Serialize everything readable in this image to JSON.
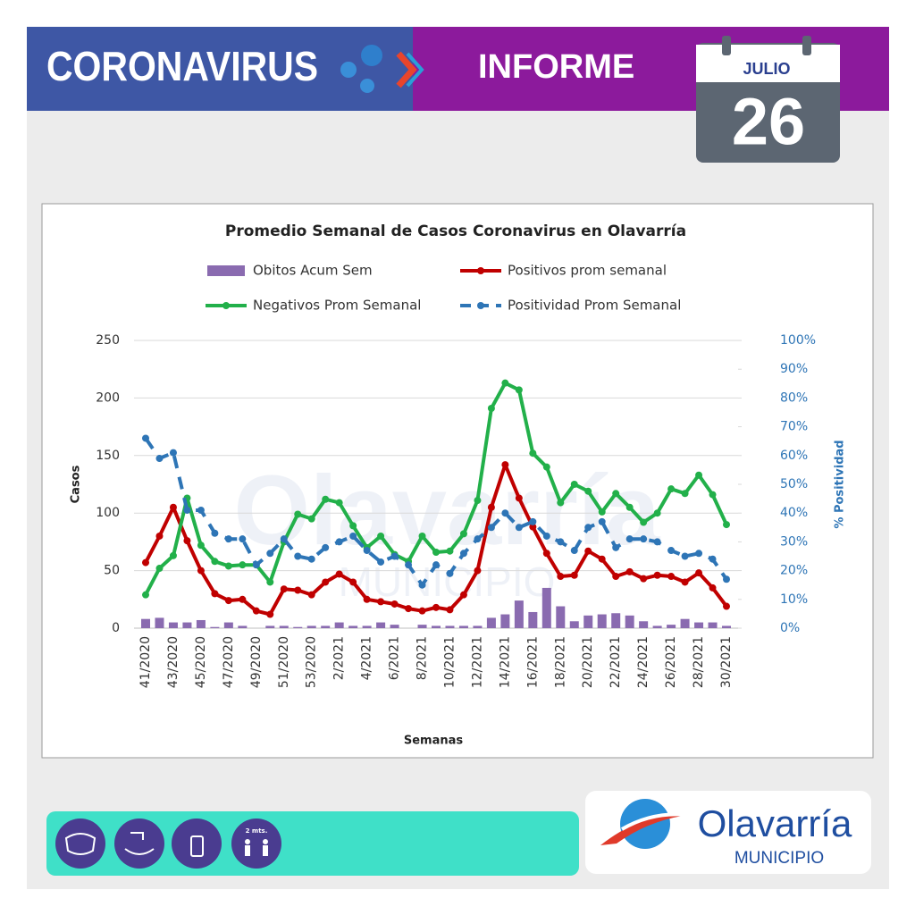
{
  "header": {
    "title": "CORONAVIRUS",
    "subtitle": "INFORME",
    "month": "JULIO",
    "day": "26"
  },
  "chart_data": {
    "type": "line",
    "title": "Promedio Semanal de Casos Coronavirus en Olavarría",
    "xlabel": "Semanas",
    "ylabel": "Casos",
    "y2label": "% Positividad",
    "categories": [
      "41/2020",
      null,
      "43/2020",
      null,
      "45/2020",
      null,
      "47/2020",
      null,
      "49/2020",
      null,
      "51/2020",
      null,
      "53/2020",
      null,
      "2/2021",
      null,
      "4/2021",
      null,
      "6/2021",
      null,
      "8/2021",
      null,
      "10/2021",
      null,
      "12/2021",
      null,
      "14/2021",
      null,
      "16/2021",
      null,
      "18/2021",
      null,
      "20/2021",
      null,
      "22/2021",
      null,
      "24/2021",
      null,
      "26/2021",
      null,
      "28/2021",
      null,
      "30/2021"
    ],
    "ylim": [
      0,
      250
    ],
    "yticks": [
      0,
      50,
      100,
      150,
      200,
      250
    ],
    "y2lim": [
      0,
      100
    ],
    "y2ticks": [
      {
        "value": 0,
        "label": "0%"
      },
      {
        "value": 10,
        "label": "10%"
      },
      {
        "value": 20,
        "label": "20%"
      },
      {
        "value": 30,
        "label": "30%"
      },
      {
        "value": 40,
        "label": "40%"
      },
      {
        "value": 50,
        "label": "50%"
      },
      {
        "value": 60,
        "label": "60%"
      },
      {
        "value": 70,
        "label": "70%"
      },
      {
        "value": 80,
        "label": "80%"
      },
      {
        "value": 90,
        "label": "90%"
      },
      {
        "value": 100,
        "label": "100%"
      }
    ],
    "grid": true,
    "series": [
      {
        "name": "Obitos Acum Sem",
        "type": "bar",
        "color": "#8a6bb0",
        "values": [
          8,
          9,
          5,
          5,
          7,
          1,
          5,
          2,
          0,
          2,
          2,
          1,
          2,
          2,
          5,
          2,
          2,
          5,
          3,
          0,
          3,
          2,
          2,
          2,
          2,
          9,
          12,
          24,
          14,
          35,
          19,
          6,
          11,
          12,
          13,
          11,
          6,
          2,
          3,
          8,
          5,
          5,
          2
        ]
      },
      {
        "name": "Positivos prom semanal",
        "type": "line",
        "color": "#c00000",
        "values": [
          57,
          80,
          105,
          76,
          50,
          30,
          24,
          25,
          15,
          12,
          34,
          33,
          29,
          40,
          47,
          40,
          25,
          23,
          21,
          17,
          15,
          18,
          16,
          29,
          50,
          105,
          142,
          113,
          88,
          65,
          45,
          46,
          67,
          60,
          45,
          49,
          43,
          46,
          45,
          40,
          48,
          35,
          19
        ]
      },
      {
        "name": "Negativos Prom Semanal",
        "type": "line",
        "color": "#22b04a",
        "values": [
          29,
          52,
          63,
          113,
          72,
          58,
          54,
          55,
          55,
          40,
          75,
          99,
          95,
          112,
          109,
          89,
          70,
          80,
          64,
          58,
          80,
          66,
          67,
          82,
          111,
          191,
          213,
          207,
          152,
          140,
          109,
          125,
          119,
          101,
          117,
          105,
          92,
          100,
          121,
          117,
          133,
          116,
          90
        ]
      },
      {
        "name": "Positividad Prom Semanal",
        "type": "line",
        "dashed": true,
        "axis": "y2",
        "color": "#2e75b6",
        "values": [
          66,
          59,
          61,
          41,
          41,
          33,
          31,
          31,
          22,
          26,
          31,
          25,
          24,
          28,
          30,
          32,
          27,
          23,
          25,
          22,
          15,
          22,
          19,
          26,
          31,
          35,
          40,
          35,
          37,
          32,
          30,
          27,
          35,
          37,
          28,
          31,
          31,
          30,
          27,
          25,
          26,
          24,
          17
        ]
      }
    ]
  },
  "footer": {
    "distance_icon": "2 mts.",
    "logo_name": "Olavarría",
    "logo_subtitle": "MUNICIPIO"
  }
}
